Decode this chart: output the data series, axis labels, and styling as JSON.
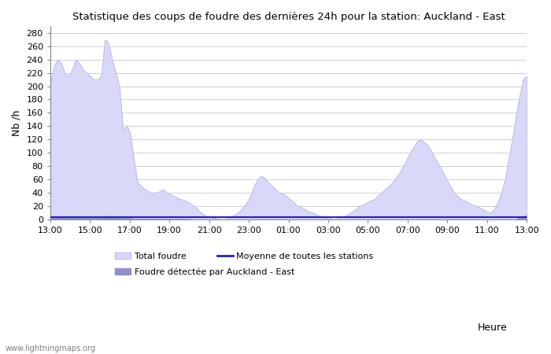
{
  "title": "Statistique des coups de foudre des dernières 24h pour la station: Auckland - East",
  "xlabel": "Heure",
  "ylabel": "Nb /h",
  "ylim": [
    0,
    290
  ],
  "yticks": [
    0,
    20,
    40,
    60,
    80,
    100,
    120,
    140,
    160,
    180,
    200,
    220,
    240,
    260,
    280
  ],
  "x_labels": [
    "13:00",
    "15:00",
    "17:00",
    "19:00",
    "21:00",
    "23:00",
    "01:00",
    "03:00",
    "05:00",
    "07:00",
    "09:00",
    "11:00",
    "13:00"
  ],
  "bg_color": "#ffffff",
  "grid_color": "#d0d0d0",
  "total_foudre_color": "#d8d8f8",
  "total_foudre_edge": "#c0c0e8",
  "detected_color": "#9090cc",
  "mean_color": "#2020cc",
  "watermark": "www.lightningmaps.org",
  "total_foudre": [
    205,
    230,
    240,
    235,
    220,
    215,
    225,
    240,
    235,
    225,
    220,
    215,
    210,
    210,
    215,
    270,
    265,
    240,
    220,
    200,
    135,
    140,
    130,
    90,
    55,
    50,
    45,
    42,
    40,
    40,
    42,
    45,
    40,
    38,
    35,
    32,
    30,
    28,
    26,
    22,
    18,
    12,
    8,
    5,
    3,
    2,
    1,
    0,
    0,
    2,
    5,
    8,
    12,
    18,
    25,
    35,
    50,
    60,
    65,
    62,
    55,
    50,
    45,
    40,
    38,
    35,
    30,
    25,
    20,
    18,
    15,
    12,
    10,
    8,
    5,
    3,
    2,
    1,
    0,
    1,
    3,
    5,
    8,
    12,
    15,
    20,
    22,
    25,
    28,
    30,
    35,
    40,
    45,
    50,
    55,
    62,
    70,
    80,
    90,
    100,
    110,
    118,
    120,
    115,
    110,
    100,
    90,
    80,
    70,
    60,
    50,
    40,
    35,
    30,
    28,
    25,
    22,
    20,
    18,
    15,
    12,
    10,
    15,
    25,
    40,
    60,
    90,
    120,
    155,
    185,
    210,
    215
  ],
  "detected": [
    3,
    4,
    5,
    4,
    3,
    3,
    3,
    4,
    3,
    3,
    2,
    2,
    2,
    2,
    3,
    5,
    5,
    4,
    3,
    3,
    2,
    2,
    2,
    1,
    1,
    1,
    1,
    1,
    1,
    1,
    1,
    1,
    1,
    1,
    1,
    1,
    1,
    1,
    1,
    0,
    0,
    0,
    0,
    0,
    0,
    0,
    0,
    0,
    0,
    0,
    0,
    0,
    0,
    0,
    0,
    0,
    0,
    0,
    0,
    0,
    0,
    0,
    0,
    0,
    0,
    0,
    0,
    0,
    0,
    0,
    0,
    0,
    0,
    0,
    0,
    0,
    0,
    0,
    0,
    0,
    0,
    0,
    0,
    0,
    0,
    0,
    0,
    0,
    0,
    0,
    0,
    0,
    0,
    0,
    0,
    0,
    0,
    0,
    0,
    0,
    0,
    0,
    0,
    0,
    0,
    0,
    0,
    0,
    0,
    0,
    0,
    0,
    0,
    0,
    0,
    0,
    0,
    0,
    0,
    0,
    0,
    0,
    0,
    0,
    0,
    0,
    0,
    0,
    0,
    3,
    5,
    6
  ],
  "mean_line_val": 3
}
